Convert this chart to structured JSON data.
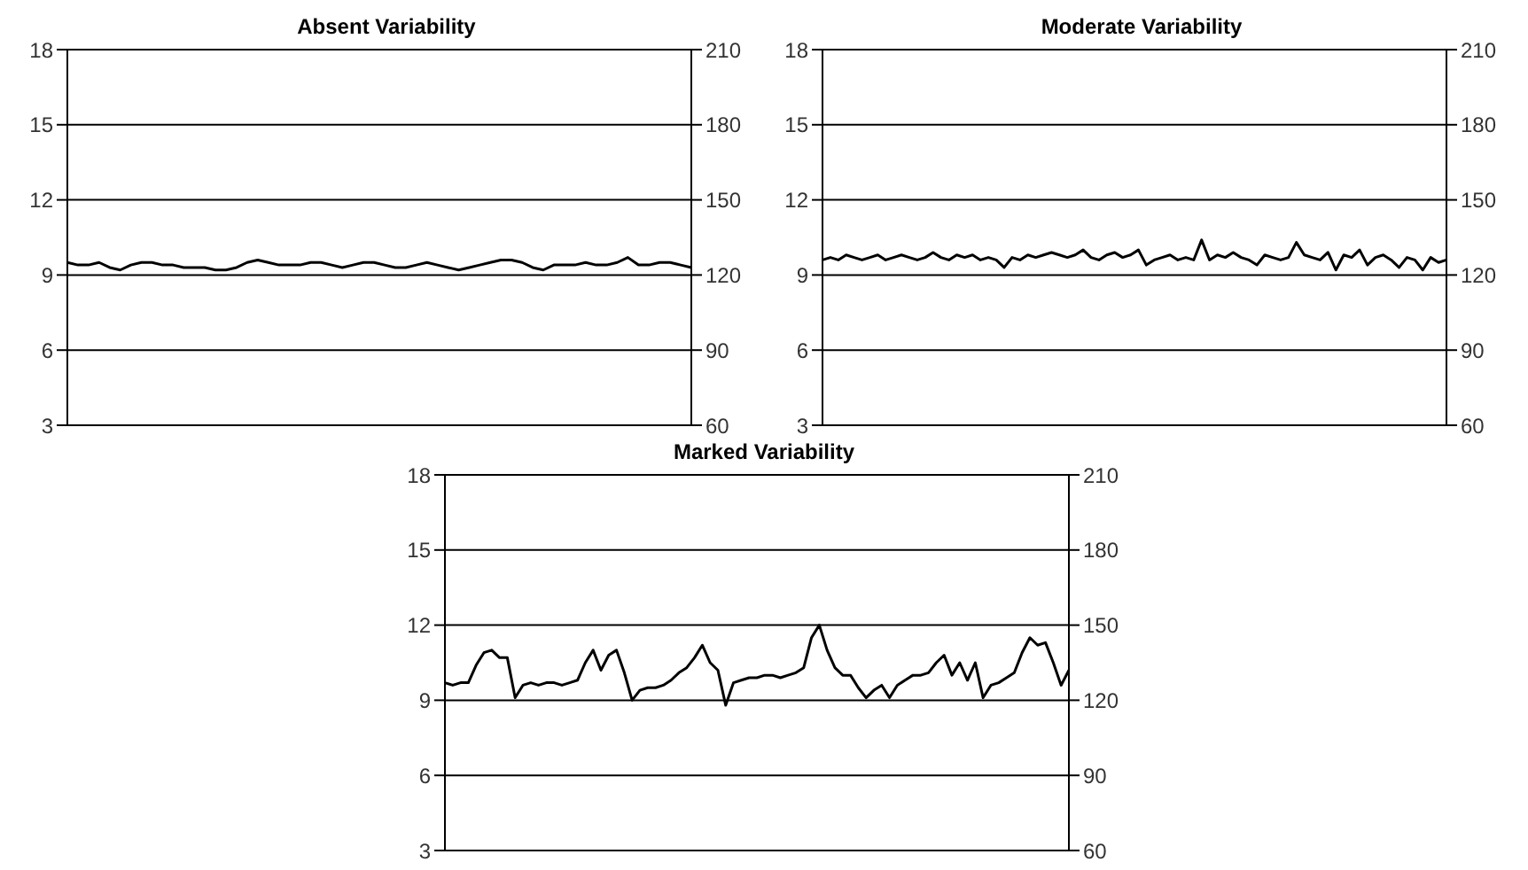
{
  "chart_data": [
    {
      "type": "line",
      "title": "Absent Variability",
      "categories": [
        null,
        null,
        null,
        null,
        null,
        null,
        null,
        null,
        null,
        null,
        null,
        null,
        null,
        null,
        null,
        null,
        null,
        null,
        null,
        null,
        null,
        null,
        null,
        null,
        null,
        null,
        null,
        null,
        null,
        null,
        null,
        null,
        null,
        null,
        null,
        null,
        null,
        null,
        null,
        null,
        null,
        null,
        null,
        null,
        null,
        null,
        null,
        null,
        null,
        null,
        null,
        null,
        null,
        null,
        null,
        null,
        null,
        null,
        null,
        null
      ],
      "series": [
        {
          "color": "#000000",
          "axis": "y2",
          "values": [
            125,
            124,
            124,
            125,
            123,
            122,
            124,
            125,
            125,
            124,
            124,
            123,
            123,
            123,
            122,
            122,
            123,
            125,
            126,
            125,
            124,
            124,
            124,
            125,
            125,
            124,
            123,
            124,
            125,
            125,
            124,
            123,
            123,
            124,
            125,
            124,
            123,
            122,
            123,
            124,
            125,
            126,
            126,
            125,
            123,
            122,
            124,
            124,
            124,
            125,
            124,
            124,
            125,
            127,
            124,
            124,
            125,
            125,
            124,
            123
          ]
        }
      ],
      "ylim": [
        3,
        18
      ],
      "yticks": [
        3,
        6,
        9,
        12,
        15,
        18
      ],
      "y2lim": [
        60,
        210
      ],
      "y2ticks": [
        60,
        90,
        120,
        150,
        180,
        210
      ],
      "grid": "y",
      "marker": "none",
      "line_style": "solid",
      "legend": false
    },
    {
      "type": "line",
      "title": "Moderate Variability",
      "categories": [
        null,
        null,
        null,
        null,
        null,
        null,
        null,
        null,
        null,
        null,
        null,
        null,
        null,
        null,
        null,
        null,
        null,
        null,
        null,
        null,
        null,
        null,
        null,
        null,
        null,
        null,
        null,
        null,
        null,
        null,
        null,
        null,
        null,
        null,
        null,
        null,
        null,
        null,
        null,
        null,
        null,
        null,
        null,
        null,
        null,
        null,
        null,
        null,
        null,
        null,
        null,
        null,
        null,
        null,
        null,
        null,
        null,
        null,
        null,
        null,
        null,
        null,
        null,
        null,
        null,
        null,
        null,
        null,
        null,
        null,
        null,
        null,
        null,
        null,
        null,
        null,
        null,
        null,
        null,
        null
      ],
      "series": [
        {
          "color": "#000000",
          "axis": "y2",
          "values": [
            126,
            127,
            126,
            128,
            127,
            126,
            127,
            128,
            126,
            127,
            128,
            127,
            126,
            127,
            129,
            127,
            126,
            128,
            127,
            128,
            126,
            127,
            126,
            123,
            127,
            126,
            128,
            127,
            128,
            129,
            128,
            127,
            128,
            130,
            127,
            126,
            128,
            129,
            127,
            128,
            130,
            124,
            126,
            127,
            128,
            126,
            127,
            126,
            134,
            126,
            128,
            127,
            129,
            127,
            126,
            124,
            128,
            127,
            126,
            127,
            133,
            128,
            127,
            126,
            129,
            122,
            128,
            127,
            130,
            124,
            127,
            128,
            126,
            123,
            127,
            126,
            122,
            127,
            125,
            126
          ]
        }
      ],
      "ylim": [
        3,
        18
      ],
      "yticks": [
        3,
        6,
        9,
        12,
        15,
        18
      ],
      "y2lim": [
        60,
        210
      ],
      "y2ticks": [
        60,
        90,
        120,
        150,
        180,
        210
      ],
      "grid": "y",
      "marker": "none",
      "line_style": "solid",
      "legend": false
    },
    {
      "type": "line",
      "title": "Marked Variability",
      "categories": [
        null,
        null,
        null,
        null,
        null,
        null,
        null,
        null,
        null,
        null,
        null,
        null,
        null,
        null,
        null,
        null,
        null,
        null,
        null,
        null,
        null,
        null,
        null,
        null,
        null,
        null,
        null,
        null,
        null,
        null,
        null,
        null,
        null,
        null,
        null,
        null,
        null,
        null,
        null,
        null,
        null,
        null,
        null,
        null,
        null,
        null,
        null,
        null,
        null,
        null,
        null,
        null,
        null,
        null,
        null,
        null,
        null,
        null,
        null,
        null,
        null,
        null,
        null,
        null,
        null,
        null,
        null,
        null,
        null,
        null,
        null,
        null,
        null,
        null,
        null,
        null,
        null,
        null,
        null,
        null,
        null
      ],
      "series": [
        {
          "color": "#000000",
          "axis": "y2",
          "values": [
            127,
            126,
            127,
            127,
            134,
            139,
            140,
            137,
            137,
            121,
            126,
            127,
            126,
            127,
            127,
            126,
            127,
            128,
            135,
            140,
            132,
            138,
            140,
            131,
            120,
            124,
            125,
            125,
            126,
            128,
            131,
            133,
            137,
            142,
            135,
            132,
            118,
            127,
            128,
            129,
            129,
            130,
            130,
            129,
            130,
            131,
            133,
            145,
            150,
            140,
            133,
            130,
            130,
            125,
            121,
            124,
            126,
            121,
            126,
            128,
            130,
            130,
            131,
            135,
            138,
            130,
            135,
            128,
            135,
            121,
            126,
            127,
            129,
            131,
            139,
            145,
            142,
            143,
            135,
            126,
            132
          ]
        }
      ],
      "ylim": [
        3,
        18
      ],
      "yticks": [
        3,
        6,
        9,
        12,
        15,
        18
      ],
      "y2lim": [
        60,
        210
      ],
      "y2ticks": [
        60,
        90,
        120,
        150,
        180,
        210
      ],
      "grid": "y",
      "marker": "none",
      "line_style": "solid",
      "legend": false
    }
  ]
}
